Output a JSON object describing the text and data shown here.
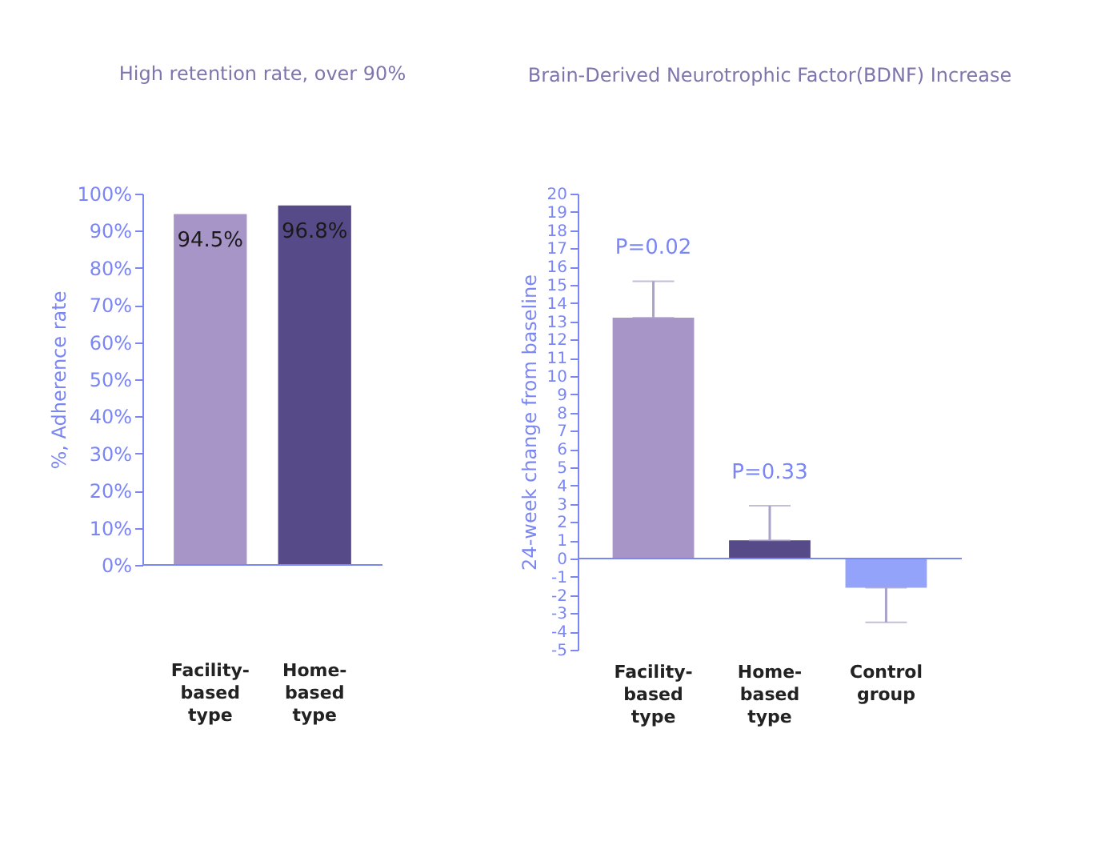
{
  "chart_data": [
    {
      "type": "bar",
      "title": "High retention rate, over 90%",
      "ylabel": "%, Adherence rate",
      "categories": [
        "Facility-based type",
        "Home-based type"
      ],
      "colors": [
        "#a795c8",
        "#574a88"
      ],
      "values": [
        94.5,
        96.8
      ],
      "value_labels": [
        "94.5%",
        "96.8%"
      ],
      "ylim": [
        0,
        100
      ],
      "yticks": [
        {
          "value": 0,
          "label": "0%"
        },
        {
          "value": 10,
          "label": "10%"
        },
        {
          "value": 20,
          "label": "20%"
        },
        {
          "value": 30,
          "label": "30%"
        },
        {
          "value": 40,
          "label": "40%"
        },
        {
          "value": 50,
          "label": "50%"
        },
        {
          "value": 60,
          "label": "60%"
        },
        {
          "value": 70,
          "label": "70%"
        },
        {
          "value": 80,
          "label": "80%"
        },
        {
          "value": 90,
          "label": "90%"
        },
        {
          "value": 100,
          "label": "100%"
        }
      ]
    },
    {
      "type": "bar",
      "title": "Brain-Derived Neurotrophic Factor(BDNF) Increase",
      "ylabel": "24-week change from baseline",
      "categories": [
        "Facility-based type",
        "Home-based type",
        "Control group"
      ],
      "colors": [
        "#a795c8",
        "#574a88",
        "#94a3fa"
      ],
      "values": [
        13.2,
        1.0,
        -1.6
      ],
      "errors": [
        [
          13.2,
          15.2
        ],
        [
          1.0,
          2.9
        ],
        [
          -3.5,
          -1.6
        ]
      ],
      "ylim": [
        -5,
        20
      ],
      "yticks": [
        -5,
        -4,
        -3,
        -2,
        -1,
        0,
        1,
        2,
        3,
        4,
        5,
        6,
        7,
        8,
        9,
        10,
        11,
        12,
        13,
        14,
        15,
        16,
        17,
        18,
        19,
        20
      ],
      "ref_lines": [
        {
          "axis": "y",
          "value": 0,
          "color": "#7b86f5"
        }
      ],
      "annotations": [
        "P=0.02",
        "P=0.33"
      ]
    }
  ]
}
